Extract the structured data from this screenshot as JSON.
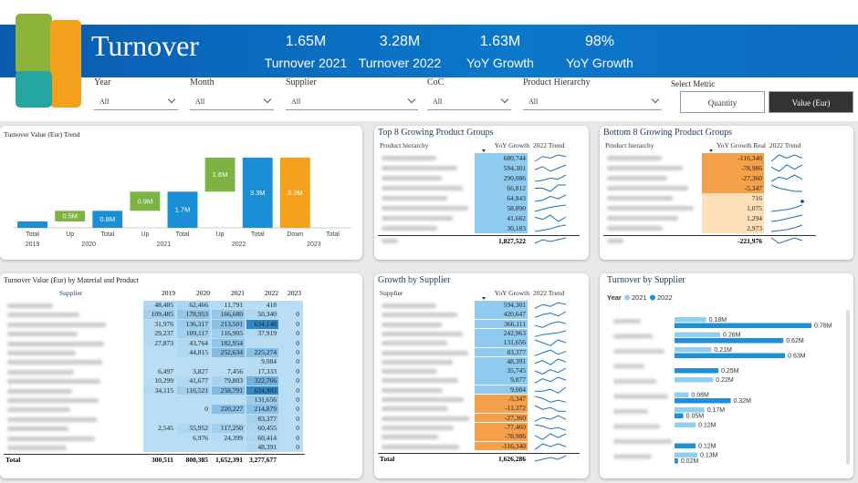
{
  "header": {
    "title": "Turnover",
    "kpis": [
      {
        "value": "1.65M",
        "label": "Turnover 2021"
      },
      {
        "value": "3.28M",
        "label": "Turnover 2022"
      },
      {
        "value": "1.63M",
        "label": "YoY Growth"
      },
      {
        "value": "98%",
        "label": "YoY Growth"
      }
    ]
  },
  "filters": [
    {
      "label": "Year",
      "value": "All"
    },
    {
      "label": "Month",
      "value": "All"
    },
    {
      "label": "Supplier",
      "value": "All"
    },
    {
      "label": "CoC",
      "value": "All"
    },
    {
      "label": "Product Hierarchy",
      "value": "All"
    }
  ],
  "metric": {
    "label": "Select Metric",
    "options": [
      "Quantity",
      "Value (Eur)"
    ],
    "selected": 1
  },
  "tables": [
    {
      "title": "Top 8 Growing Product Groups",
      "columns": [
        "Product hierarchy",
        "YoY Growth",
        "2022 Trend"
      ],
      "positive_color": "#8fcbef",
      "negative_color": "#f5a04a",
      "rows": [
        {
          "value": "680,744",
          "trend": [
            3,
            6,
            5,
            7,
            6
          ]
        },
        {
          "value": "594,301",
          "trend": [
            4,
            6,
            3,
            5,
            7
          ]
        },
        {
          "value": "290,086",
          "trend": [
            2,
            3,
            5,
            4,
            8
          ]
        },
        {
          "value": "66,812",
          "trend": [
            5,
            5,
            4,
            6,
            6
          ]
        },
        {
          "value": "64,843",
          "trend": [
            3,
            4,
            7,
            5,
            8
          ]
        },
        {
          "value": "58,890",
          "trend": [
            2,
            4,
            6,
            7,
            8
          ]
        },
        {
          "value": "41,662",
          "trend": [
            6,
            5,
            7,
            4,
            6
          ]
        },
        {
          "value": "30,183",
          "trend": [
            2,
            3,
            4,
            6,
            7
          ]
        }
      ],
      "total": {
        "value": "1,827,522",
        "trend": [
          3,
          5,
          4,
          5,
          6
        ]
      }
    },
    {
      "title": "Bottom 8 Growing Product Groups",
      "columns": [
        "Product hierarchy",
        "YoY Growth Real",
        "2022 Trend"
      ],
      "positive_color": "#fde0b8",
      "negative_color": "#f5a04a",
      "rows": [
        {
          "value": "-116,340",
          "trend": [
            5,
            7,
            6,
            7,
            6
          ]
        },
        {
          "value": "-78,986",
          "trend": [
            6,
            4,
            7,
            5,
            7
          ]
        },
        {
          "value": "-27,360",
          "trend": [
            4,
            6,
            5,
            7,
            5
          ]
        },
        {
          "value": "-5,347",
          "trend": [
            7,
            5,
            4,
            3,
            3
          ]
        },
        {
          "value": "716",
          "trend": [
            null,
            null,
            null,
            null,
            5
          ]
        },
        {
          "value": "1,075",
          "trend": [
            1,
            2,
            3,
            5,
            8
          ]
        },
        {
          "value": "1,294",
          "trend": [
            1,
            2,
            4,
            6,
            8
          ]
        },
        {
          "value": "2,973",
          "trend": [
            2,
            3,
            4,
            6,
            9
          ]
        }
      ],
      "total": {
        "value": "-221,976",
        "trend": [
          6,
          4,
          5,
          6,
          5
        ]
      }
    },
    {
      "title": "Growth by Supplier",
      "columns": [
        "Supplier",
        "YoY Growth",
        "2022 Trend"
      ],
      "positive_color": "#8fcbef",
      "negative_color": "#f5a04a",
      "rows": [
        {
          "value": "594,301",
          "trend": [
            4,
            6,
            5,
            7,
            6
          ]
        },
        {
          "value": "420,647",
          "trend": [
            3,
            5,
            6,
            4,
            7
          ]
        },
        {
          "value": "366,111",
          "trend": [
            5,
            4,
            6,
            7,
            6
          ]
        },
        {
          "value": "242,963",
          "trend": [
            2,
            4,
            5,
            6,
            8
          ]
        },
        {
          "value": "131,656",
          "trend": [
            6,
            5,
            4,
            6,
            5
          ]
        },
        {
          "value": "83,377",
          "trend": [
            3,
            5,
            7,
            4,
            6
          ]
        },
        {
          "value": "48,391",
          "trend": [
            4,
            6,
            3,
            7,
            5
          ]
        },
        {
          "value": "35,745",
          "trend": [
            5,
            3,
            6,
            4,
            7
          ]
        },
        {
          "value": "9,877",
          "trend": [
            2,
            5,
            3,
            6,
            4
          ]
        },
        {
          "value": "9,084",
          "trend": [
            4,
            4,
            5,
            3,
            6
          ]
        },
        {
          "value": "-5,347",
          "trend": [
            6,
            5,
            3,
            4,
            3
          ]
        },
        {
          "value": "-11,372",
          "trend": [
            7,
            5,
            6,
            4,
            4
          ]
        },
        {
          "value": "-27,360",
          "trend": [
            4,
            6,
            5,
            7,
            5
          ]
        },
        {
          "value": "-77,460",
          "trend": [
            7,
            6,
            4,
            5,
            3
          ]
        },
        {
          "value": "-78,986",
          "trend": [
            6,
            4,
            7,
            5,
            7
          ]
        },
        {
          "value": "-116,340",
          "trend": [
            5,
            7,
            6,
            7,
            6
          ]
        }
      ],
      "total": {
        "label": "Total",
        "value": "1,626,286",
        "trend": [
          4,
          5,
          6,
          5,
          7
        ]
      }
    }
  ],
  "matrix": {
    "title": "Turnover Value (Eur) by Material and Product",
    "columns": [
      "Supplier",
      "2019",
      "2020",
      "2021",
      "2022",
      "2023"
    ],
    "rows": [
      [
        "48,485",
        "62,466",
        "11,791",
        "418",
        null
      ],
      [
        "109,485",
        "178,953",
        "166,680",
        "50,340",
        "0"
      ],
      [
        "31,976",
        "136,317",
        "213,501",
        "634,148",
        "0"
      ],
      [
        "29,237",
        "109,117",
        "116,905",
        "37,919",
        "0"
      ],
      [
        "27,873",
        "43,764",
        "182,954",
        null,
        "0"
      ],
      [
        null,
        "44,815",
        "252,634",
        "225,274",
        "0"
      ],
      [
        null,
        null,
        null,
        "9,084",
        "0"
      ],
      [
        "6,497",
        "3,827",
        "7,456",
        "17,333",
        "0"
      ],
      [
        "10,299",
        "41,677",
        "79,803",
        "322,766",
        "0"
      ],
      [
        "34,115",
        "116,521",
        "258,791",
        "624,903",
        "0"
      ],
      [
        null,
        null,
        null,
        "131,656",
        "0"
      ],
      [
        null,
        "0",
        "220,227",
        "214,879",
        "0"
      ],
      [
        null,
        null,
        null,
        "83,377",
        "0"
      ],
      [
        "2,545",
        "55,952",
        "117,250",
        "60,455",
        "0"
      ],
      [
        null,
        "6,976",
        "24,399",
        "60,414",
        "0"
      ],
      [
        null,
        null,
        null,
        "48,391",
        "0"
      ]
    ],
    "total": {
      "label": "Total",
      "values": [
        "300,511",
        "800,385",
        "1,652,391",
        "3,277,677",
        null
      ]
    }
  },
  "chart_data": [
    {
      "type": "waterfall",
      "title": "Turnover Value (Eur) Trend",
      "categories": [
        "Total",
        "Up",
        "Total",
        "Up",
        "Total",
        "Up",
        "Total",
        "Down",
        "Total"
      ],
      "groups": [
        "2019",
        "2020",
        "2021",
        "2022",
        "2023"
      ],
      "values": [
        0.3,
        0.5,
        0.8,
        0.9,
        1.7,
        1.6,
        3.3,
        3.3,
        0
      ],
      "value_labels": [
        null,
        "0.5M",
        "0.8M",
        "0.9M",
        "1.7M",
        "1.6M",
        "3.3M",
        "3.3M",
        null
      ],
      "colors": {
        "Total": "#1a8fd6",
        "Up": "#7cb342",
        "Down": "#f5a01a"
      }
    },
    {
      "type": "bar",
      "orientation": "horizontal",
      "title": "Turnover by Supplier",
      "legend_title": "Year",
      "categories": [
        null,
        null,
        null,
        null,
        null,
        null,
        null,
        null,
        null,
        null
      ],
      "series": [
        {
          "name": "2021",
          "color": "#8fd0f2",
          "values": [
            0.18,
            0.26,
            0.21,
            null,
            0.22,
            0.08,
            0.17,
            0.12,
            null,
            0.13
          ],
          "value_labels": [
            "0.18M",
            "0.26M",
            "0.21M",
            null,
            "0.22M",
            "0.08M",
            "0.17M",
            "0.12M",
            null,
            "0.13M"
          ]
        },
        {
          "name": "2022",
          "color": "#1f8fd8",
          "values": [
            0.78,
            0.62,
            0.63,
            0.25,
            null,
            0.32,
            0.05,
            null,
            0.12,
            0.02
          ],
          "value_labels": [
            "0.78M",
            "0.62M",
            "0.63M",
            "0.25M",
            null,
            "0.32M",
            "0.05M",
            null,
            "0.12M",
            "0.02M"
          ]
        }
      ]
    }
  ]
}
